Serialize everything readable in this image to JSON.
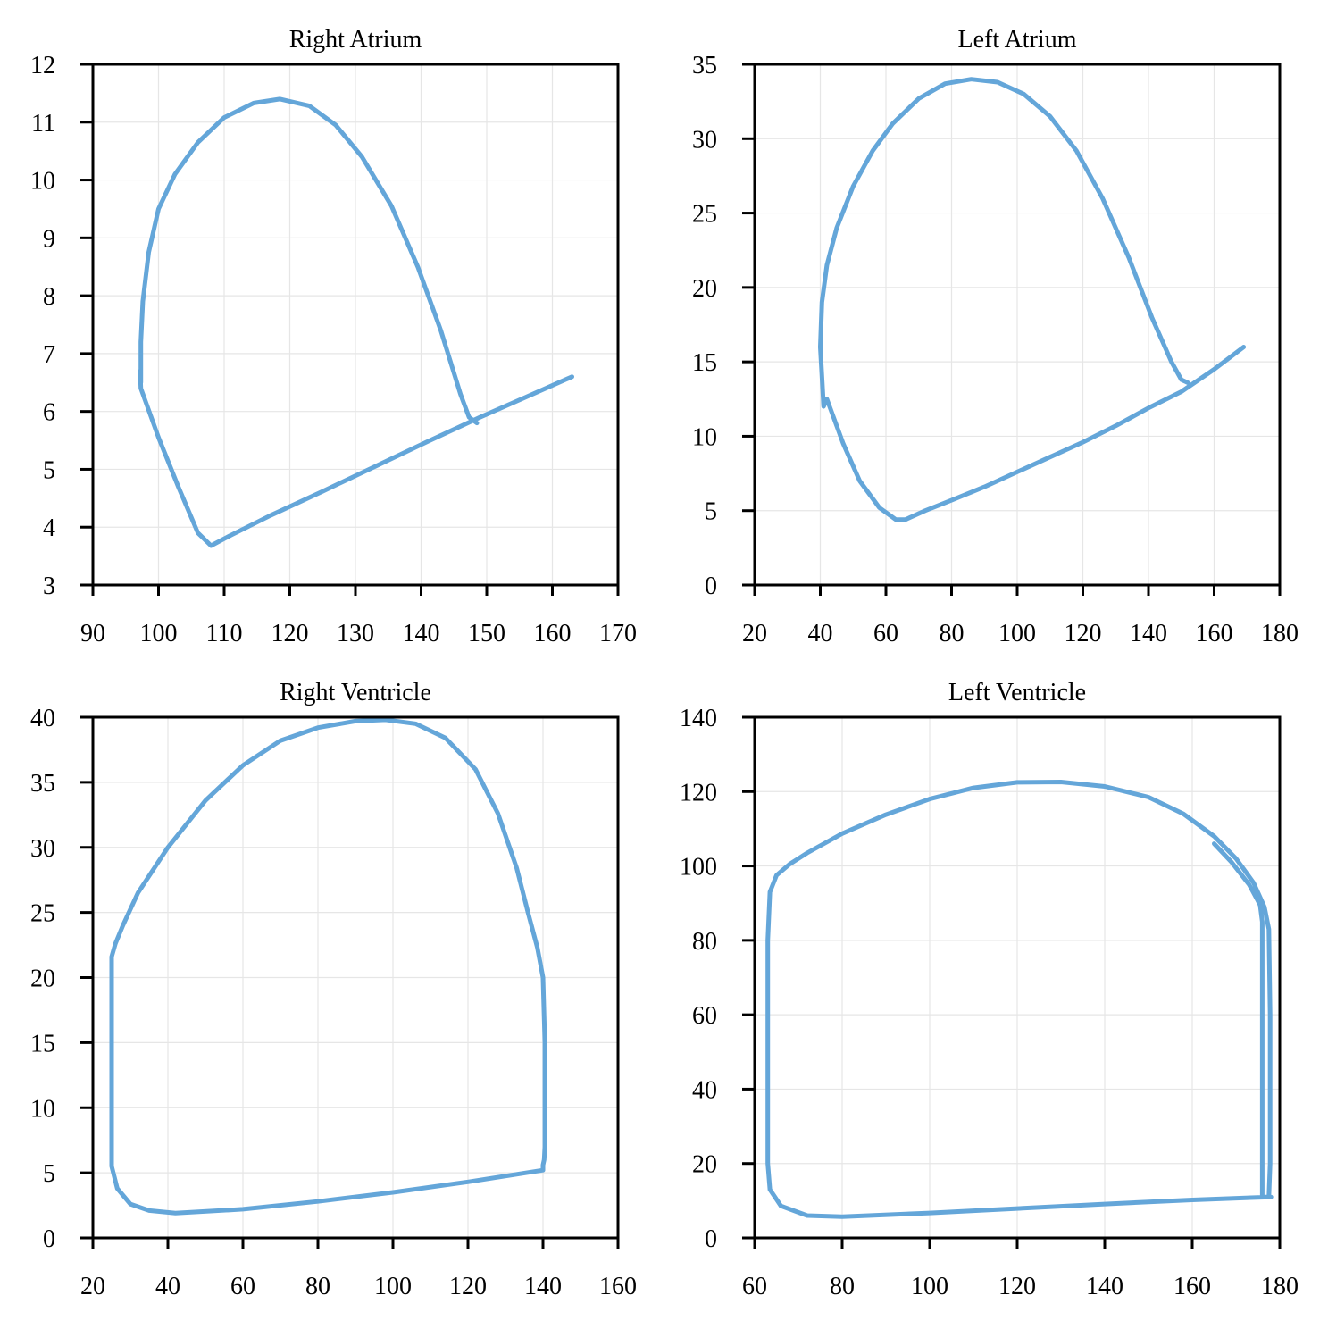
{
  "colors": {
    "series": "#64a6d9",
    "grid": "#e6e6e6",
    "axis": "#000000"
  },
  "chart_data": [
    {
      "type": "line",
      "title": "Right Atrium",
      "xlabel": "",
      "ylabel": "",
      "xlim": [
        90,
        170
      ],
      "ylim": [
        3,
        12
      ],
      "xticks": [
        90,
        100,
        110,
        120,
        130,
        140,
        150,
        160,
        170
      ],
      "yticks": [
        3,
        4,
        5,
        6,
        7,
        8,
        9,
        10,
        11,
        12
      ],
      "grid": true,
      "series": [
        {
          "x": [
            163,
            156,
            149,
            141,
            133,
            125,
            117,
            111,
            108,
            106,
            103,
            100,
            97.3,
            97.2,
            97.3,
            97.3,
            97.6,
            98.5,
            100,
            102.5,
            106,
            110,
            114.5,
            118.5,
            123,
            127,
            131,
            135.5,
            139.5,
            143,
            146,
            147.3,
            148.5
          ],
          "y": [
            6.6,
            6.25,
            5.9,
            5.48,
            5.05,
            4.62,
            4.2,
            3.86,
            3.68,
            3.9,
            4.7,
            5.55,
            6.4,
            6.7,
            6.5,
            7.2,
            7.9,
            8.75,
            9.5,
            10.1,
            10.65,
            11.08,
            11.33,
            11.4,
            11.28,
            10.95,
            10.4,
            9.55,
            8.5,
            7.4,
            6.3,
            5.9,
            5.8
          ]
        }
      ]
    },
    {
      "type": "line",
      "title": "Left Atrium",
      "xlabel": "",
      "ylabel": "",
      "xlim": [
        20,
        180
      ],
      "ylim": [
        0,
        35
      ],
      "xticks": [
        20,
        40,
        60,
        80,
        100,
        120,
        140,
        160,
        180
      ],
      "yticks": [
        0,
        5,
        10,
        15,
        20,
        25,
        30,
        35
      ],
      "grid": true,
      "series": [
        {
          "x": [
            169,
            160,
            150,
            140,
            130,
            120,
            110,
            100,
            90,
            80,
            72,
            66,
            63,
            58,
            52,
            47,
            42,
            41,
            40,
            40.5,
            42,
            45,
            50,
            56,
            62,
            70,
            78,
            86,
            94,
            102,
            110,
            118,
            126,
            134,
            141,
            147,
            150,
            152
          ],
          "y": [
            16,
            14.5,
            13,
            11.9,
            10.7,
            9.6,
            8.6,
            7.6,
            6.6,
            5.7,
            5,
            4.4,
            4.4,
            5.2,
            7,
            9.5,
            12.5,
            12,
            16,
            19,
            21.5,
            24,
            26.8,
            29.2,
            31,
            32.7,
            33.7,
            34,
            33.8,
            33,
            31.5,
            29.2,
            26,
            22,
            18,
            15,
            13.8,
            13.6
          ]
        }
      ]
    },
    {
      "type": "line",
      "title": "Right Ventricle",
      "xlabel": "",
      "ylabel": "",
      "xlim": [
        20,
        160
      ],
      "ylim": [
        0,
        40
      ],
      "xticks": [
        20,
        40,
        60,
        80,
        100,
        120,
        140,
        160
      ],
      "yticks": [
        0,
        5,
        10,
        15,
        20,
        25,
        30,
        35,
        40
      ],
      "grid": true,
      "series": [
        {
          "x": [
            140,
            120,
            100,
            80,
            60,
            42,
            35,
            30,
            26.5,
            25,
            25,
            25,
            25,
            25,
            26,
            28,
            32,
            40,
            50,
            60,
            70,
            80,
            90,
            98,
            106,
            114,
            122,
            128,
            133,
            136,
            138.5,
            140,
            140.5,
            140.5,
            140.5,
            140.3,
            140,
            140
          ],
          "y": [
            5.2,
            4.3,
            3.5,
            2.8,
            2.2,
            1.9,
            2.1,
            2.6,
            3.8,
            5.5,
            10,
            15,
            20,
            21.6,
            22.6,
            24,
            26.5,
            30,
            33.6,
            36.3,
            38.2,
            39.2,
            39.7,
            39.8,
            39.5,
            38.4,
            36,
            32.6,
            28.4,
            25,
            22.3,
            20,
            15,
            10,
            7,
            6,
            5.6,
            5.2
          ]
        }
      ]
    },
    {
      "type": "line",
      "title": "Left Ventricle",
      "xlabel": "",
      "ylabel": "",
      "xlim": [
        60,
        180
      ],
      "ylim": [
        0,
        140
      ],
      "xticks": [
        60,
        80,
        100,
        120,
        140,
        160,
        180
      ],
      "yticks": [
        0,
        20,
        40,
        60,
        80,
        100,
        120,
        140
      ],
      "grid": true,
      "series": [
        {
          "x": [
            178,
            160,
            140,
            120,
            100,
            80,
            72,
            66,
            63.5,
            63,
            63,
            63,
            63,
            63.5,
            65,
            68,
            72,
            80,
            90,
            100,
            110,
            120,
            130,
            140,
            150,
            158,
            165,
            170,
            174,
            176.5,
            177.5,
            177.8,
            177.8,
            177.8,
            177.5,
            176,
            176,
            176,
            176,
            176,
            175.5,
            173,
            169,
            165
          ],
          "y": [
            11,
            10.2,
            9.1,
            7.9,
            6.7,
            5.7,
            6,
            8.6,
            13,
            20,
            40,
            60,
            80,
            93,
            97.5,
            100.5,
            103.5,
            108.7,
            113.8,
            118,
            121,
            122.5,
            122.6,
            121.4,
            118.5,
            114,
            108,
            102,
            95.5,
            89,
            83,
            60,
            40,
            20,
            11,
            11,
            40,
            60,
            80,
            85,
            89.5,
            95,
            101,
            106
          ]
        }
      ]
    }
  ]
}
